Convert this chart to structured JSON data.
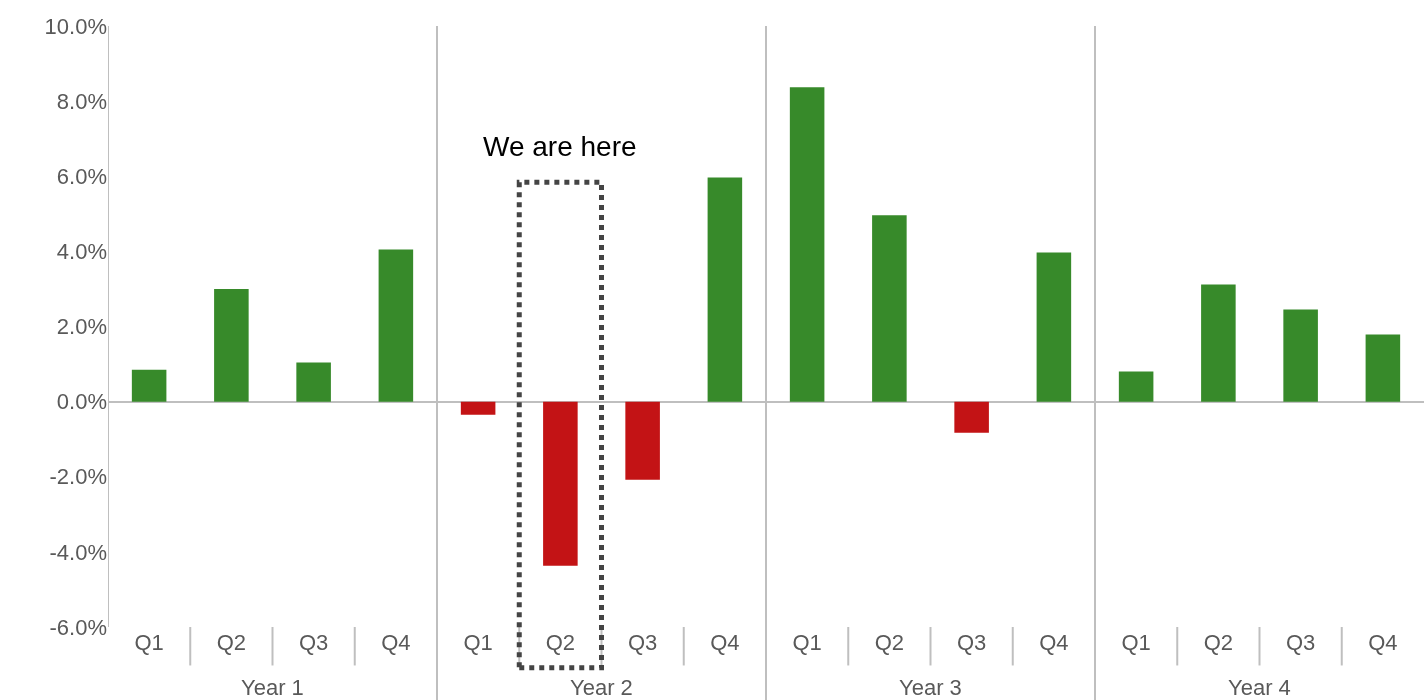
{
  "chart_data": {
    "type": "bar",
    "categories": [
      "Q1",
      "Q2",
      "Q3",
      "Q4",
      "Q1",
      "Q2",
      "Q3",
      "Q4",
      "Q1",
      "Q2",
      "Q3",
      "Q4",
      "Q1",
      "Q2",
      "Q3",
      "Q4"
    ],
    "values": [
      0.85,
      3.0,
      1.04,
      4.05,
      -0.35,
      -4.37,
      -2.08,
      5.97,
      8.37,
      4.96,
      -0.83,
      3.97,
      0.8,
      3.12,
      2.45,
      1.79
    ],
    "colors": [
      "#378a2a",
      "#378a2a",
      "#378a2a",
      "#378a2a",
      "#c31315",
      "#c31315",
      "#c31315",
      "#378a2a",
      "#378a2a",
      "#378a2a",
      "#c31315",
      "#378a2a",
      "#378a2a",
      "#378a2a",
      "#378a2a",
      "#378a2a"
    ],
    "ylim": [
      -6,
      10
    ],
    "yticks": [
      {
        "value": -6,
        "label": "-6.0%"
      },
      {
        "value": -4,
        "label": "-4.0%"
      },
      {
        "value": -2,
        "label": "-2.0%"
      },
      {
        "value": 0,
        "label": "0.0%"
      },
      {
        "value": 2,
        "label": "2.0%"
      },
      {
        "value": 4,
        "label": "4.0%"
      },
      {
        "value": 6,
        "label": "6.0%"
      },
      {
        "value": 8,
        "label": "8.0%"
      },
      {
        "value": 10,
        "label": "10.0%"
      }
    ],
    "annotations": [
      "Year 1",
      "Year 2",
      "Year 3",
      "Year 4",
      "We are here"
    ]
  }
}
